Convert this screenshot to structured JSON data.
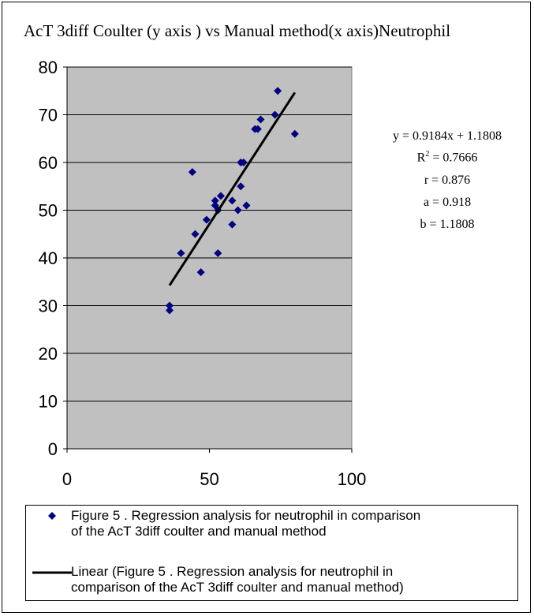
{
  "chart_data": {
    "type": "scatter",
    "title": "AcT 3diff Coulter (y axis ) vs Manual method(x axis)Neutrophil",
    "xlim": [
      0,
      100
    ],
    "ylim": [
      0,
      80
    ],
    "x_ticks": [
      "0",
      "50",
      "100"
    ],
    "y_ticks": [
      "0",
      "10",
      "20",
      "30",
      "40",
      "50",
      "60",
      "70",
      "80"
    ],
    "grid": "horizontal",
    "colors": {
      "plot_background": "#c0c0c0",
      "marker": "#000080",
      "trendline": "#000000"
    },
    "series": [
      {
        "name": "Figure 5 . Regression analysis for neutrophil in comparison of the AcT 3diff coulter and manual method",
        "marker": "diamond",
        "points": [
          {
            "x": 36,
            "y": 30
          },
          {
            "x": 36,
            "y": 29
          },
          {
            "x": 40,
            "y": 41
          },
          {
            "x": 44,
            "y": 58
          },
          {
            "x": 45,
            "y": 45
          },
          {
            "x": 47,
            "y": 37
          },
          {
            "x": 49,
            "y": 48
          },
          {
            "x": 52,
            "y": 52
          },
          {
            "x": 52,
            "y": 51
          },
          {
            "x": 53,
            "y": 41
          },
          {
            "x": 53,
            "y": 50
          },
          {
            "x": 54,
            "y": 53
          },
          {
            "x": 58,
            "y": 52
          },
          {
            "x": 58,
            "y": 47
          },
          {
            "x": 60,
            "y": 50
          },
          {
            "x": 61,
            "y": 55
          },
          {
            "x": 61,
            "y": 60
          },
          {
            "x": 62,
            "y": 60
          },
          {
            "x": 63,
            "y": 51
          },
          {
            "x": 66,
            "y": 67
          },
          {
            "x": 67,
            "y": 67
          },
          {
            "x": 68,
            "y": 69
          },
          {
            "x": 73,
            "y": 70
          },
          {
            "x": 74,
            "y": 75
          },
          {
            "x": 80,
            "y": 66
          }
        ]
      },
      {
        "name": "Linear (Figure 5 . Regression analysis for neutrophil in comparison of the AcT 3diff coulter and manual method)",
        "type": "line",
        "slope": 0.9184,
        "intercept": 1.1808,
        "x_range": [
          36,
          80
        ]
      }
    ],
    "annotations": [
      "y = 0.9184x + 1.1808",
      "R² = 0.7666",
      "r = 0.876",
      "a = 0.918",
      "b = 1.1808"
    ],
    "legend": {
      "position": "bottom",
      "entries": [
        [
          "Figure 5 . Regression analysis for neutrophil in comparison",
          "of the AcT 3diff coulter and manual method"
        ],
        [
          "Linear (Figure 5 . Regression analysis for neutrophil in",
          "comparison of the AcT 3diff coulter and manual method)"
        ]
      ]
    }
  }
}
